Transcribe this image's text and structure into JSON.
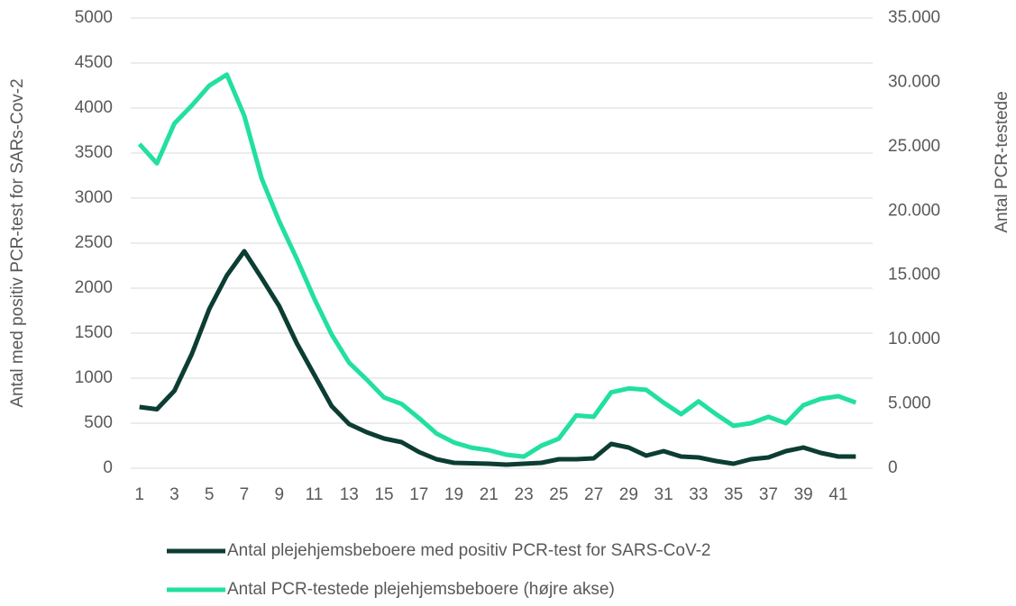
{
  "chart_data": {
    "type": "line",
    "x": [
      1,
      2,
      3,
      4,
      5,
      6,
      7,
      8,
      9,
      10,
      11,
      12,
      13,
      14,
      15,
      16,
      17,
      18,
      19,
      20,
      21,
      22,
      23,
      24,
      25,
      26,
      27,
      28,
      29,
      30,
      31,
      32,
      33,
      34,
      35,
      36,
      37,
      38,
      39,
      40,
      41,
      42
    ],
    "xlim": [
      0.5,
      42.5
    ],
    "xticks": [
      1,
      3,
      5,
      7,
      9,
      11,
      13,
      15,
      17,
      19,
      21,
      23,
      25,
      27,
      29,
      31,
      33,
      35,
      37,
      39,
      41
    ],
    "ylim": [
      0,
      5000
    ],
    "yticks": [
      0,
      500,
      1000,
      1500,
      2000,
      2500,
      3000,
      3500,
      4000,
      4500,
      5000
    ],
    "y2lim": [
      0,
      35000
    ],
    "y2ticks": [
      {
        "value": 0,
        "label": "0"
      },
      {
        "value": 5000,
        "label": "5.000"
      },
      {
        "value": 10000,
        "label": "10.000"
      },
      {
        "value": 15000,
        "label": "15.000"
      },
      {
        "value": 20000,
        "label": "20.000"
      },
      {
        "value": 25000,
        "label": "25.000"
      },
      {
        "value": 30000,
        "label": "30.000"
      },
      {
        "value": 35000,
        "label": "35.000"
      }
    ],
    "ylabel": "Antal med positiv PCR-test for SARs-Cov-2",
    "y2label": "Antal PCR-testede",
    "grid": true,
    "legend": "bottom",
    "series": [
      {
        "name": "Antal plejehjemsbeboere med positiv PCR-test for SARS-CoV-2",
        "color": "#0c3d33",
        "values": [
          680,
          655,
          860,
          1270,
          1770,
          2140,
          2410,
          2110,
          1800,
          1390,
          1040,
          690,
          490,
          400,
          330,
          290,
          180,
          100,
          60,
          55,
          50,
          40,
          50,
          60,
          100,
          100,
          110,
          270,
          230,
          140,
          190,
          130,
          120,
          80,
          50,
          100,
          120,
          190,
          230,
          170,
          130,
          130
        ]
      },
      {
        "name": "Antal PCR-testede plejehjemsbeboere (højre akse)",
        "color": "#22dfa2",
        "axis": "y2",
        "values": [
          25200,
          23700,
          26800,
          28200,
          29750,
          30600,
          27400,
          22500,
          19200,
          16300,
          13200,
          10400,
          8200,
          6900,
          5500,
          5000,
          3900,
          2700,
          2000,
          1600,
          1400,
          1050,
          900,
          1750,
          2300,
          4100,
          4000,
          5900,
          6200,
          6100,
          5100,
          4200,
          5200,
          4200,
          3300,
          3500,
          4000,
          3500,
          4900,
          5400,
          5600,
          5100
        ]
      }
    ]
  }
}
